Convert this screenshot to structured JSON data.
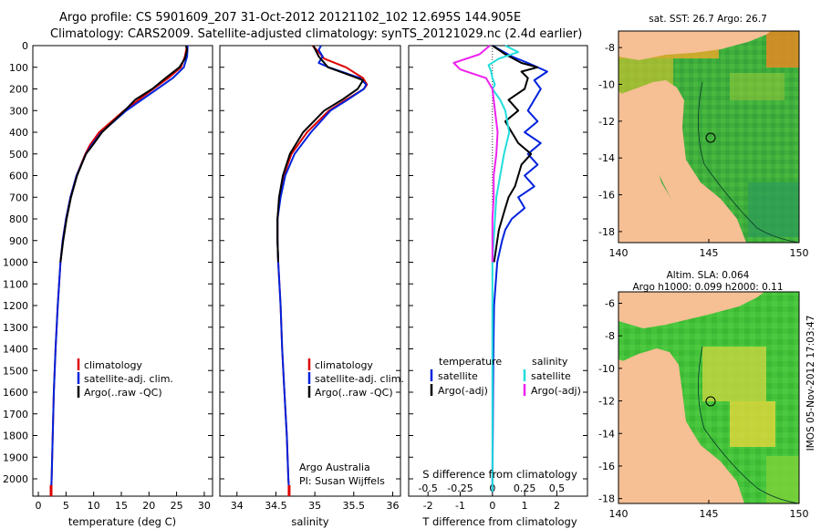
{
  "header": {
    "line1": "Argo profile: CS 5901609_207 31-Oct-2012 20121102_102 12.695S 144.905E",
    "line2": "Climatology: CARS2009. Satellite-adjusted climatology: synTS_20121029.nc (2.4d earlier)"
  },
  "colors": {
    "climatology": "#dd0000",
    "satellite": "#0022dd",
    "argo": "#000000",
    "sal_satellite": "#22dddd",
    "sal_argo": "#ee22ee",
    "land": "#f6bf94"
  },
  "depth_axis": {
    "ticks": [
      "0",
      "100",
      "200",
      "300",
      "400",
      "500",
      "600",
      "700",
      "800",
      "900",
      "1000",
      "1100",
      "1200",
      "1300",
      "1400",
      "1500",
      "1600",
      "1700",
      "1800",
      "1900",
      "2000"
    ]
  },
  "chart_data": [
    {
      "type": "line",
      "panel": "temperature",
      "xlabel": "temperature (deg C)",
      "ylabel": "depth",
      "xlim": [
        -1,
        31.5
      ],
      "ylim": [
        2080,
        0
      ],
      "xticks": [
        "0",
        "5",
        "10",
        "15",
        "20",
        "25",
        "30"
      ],
      "legend": [
        "climatology",
        "satellite-adj. clim.",
        "Argo(..raw -QC)"
      ],
      "series": [
        {
          "name": "climatology",
          "depth": [
            0,
            50,
            100,
            150,
            200,
            300,
            400,
            460,
            500,
            600,
            700,
            800,
            900,
            1000,
            1200,
            1400,
            1600,
            1800,
            2000,
            2060
          ],
          "values": [
            26.9,
            26.5,
            25.8,
            23.5,
            20.8,
            15.5,
            11.0,
            9.3,
            8.5,
            6.9,
            5.8,
            5.0,
            4.4,
            4.0,
            3.5,
            3.1,
            2.8,
            2.6,
            2.4,
            2.3
          ]
        },
        {
          "name": "satellite-adj. clim.",
          "depth": [
            0,
            50,
            100,
            150,
            200,
            300,
            400,
            460,
            500,
            600,
            700,
            800,
            900,
            1000,
            1200,
            1400,
            1600,
            1800,
            2000,
            2060
          ],
          "values": [
            27.0,
            26.9,
            26.3,
            24.3,
            21.5,
            15.9,
            11.4,
            9.6,
            8.6,
            6.9,
            5.8,
            5.0,
            4.4,
            4.0,
            3.5,
            3.1,
            2.8,
            2.6,
            2.4,
            2.3
          ]
        },
        {
          "name": "Argo(..raw -QC)",
          "depth": [
            0,
            20,
            60,
            100,
            150,
            200,
            250,
            300,
            400,
            460,
            500,
            600,
            700,
            800,
            900,
            1000
          ],
          "values": [
            26.7,
            26.9,
            26.5,
            25.5,
            23.0,
            20.6,
            17.5,
            15.6,
            11.5,
            9.8,
            8.6,
            7.0,
            5.9,
            5.1,
            4.5,
            4.0
          ]
        }
      ]
    },
    {
      "type": "line",
      "panel": "salinity",
      "xlabel": "salinity",
      "ylabel": "depth",
      "xlim": [
        33.78,
        36.1
      ],
      "ylim": [
        2080,
        0
      ],
      "xticks": [
        "34",
        "34.5",
        "35",
        "35.5",
        "36"
      ],
      "legend": [
        "climatology",
        "satellite-adj. clim.",
        "Argo(..raw -QC)"
      ],
      "annotation": [
        "Argo Australia",
        "PI: Susan Wijffels"
      ],
      "series": [
        {
          "name": "climatology",
          "depth": [
            0,
            30,
            60,
            100,
            150,
            180,
            200,
            250,
            300,
            400,
            500,
            600,
            700,
            800,
            900,
            1000,
            1200,
            1400,
            1600,
            1800,
            2000,
            2060
          ],
          "values": [
            34.97,
            35.05,
            35.12,
            35.4,
            35.62,
            35.67,
            35.63,
            35.4,
            35.18,
            34.9,
            34.7,
            34.6,
            34.55,
            34.52,
            34.52,
            34.53,
            34.56,
            34.58,
            34.61,
            34.64,
            34.66,
            34.67
          ]
        },
        {
          "name": "satellite-adj. clim.",
          "depth": [
            0,
            20,
            50,
            80,
            100,
            150,
            180,
            200,
            250,
            300,
            400,
            500,
            600,
            700,
            800,
            900,
            1000,
            1200,
            1400,
            1600,
            1800,
            2000,
            2060
          ],
          "values": [
            35.08,
            35.05,
            35.1,
            35.05,
            35.18,
            35.58,
            35.66,
            35.63,
            35.42,
            35.2,
            34.95,
            34.74,
            34.62,
            34.56,
            34.52,
            34.52,
            34.53,
            34.56,
            34.58,
            34.61,
            34.64,
            34.66,
            34.67
          ]
        },
        {
          "name": "Argo(..raw -QC)",
          "depth": [
            0,
            50,
            100,
            130,
            160,
            200,
            250,
            300,
            400,
            500,
            600,
            700,
            800,
            900,
            1000
          ],
          "values": [
            34.98,
            35.05,
            35.17,
            35.4,
            35.62,
            35.55,
            35.35,
            35.12,
            34.85,
            34.68,
            34.59,
            34.54,
            34.52,
            34.52,
            34.53
          ]
        }
      ]
    },
    {
      "type": "line",
      "panel": "difference",
      "xlabel": "T difference from climatology",
      "xlabel_top": "S difference from climatology",
      "ylabel": "depth",
      "xlim": [
        -2.6,
        2.95
      ],
      "ylim": [
        2080,
        0
      ],
      "xticks": [
        "-2",
        "-1",
        "0",
        "1",
        "2"
      ],
      "xticks_top": [
        "-0.5",
        "-0.25",
        "0",
        "0.25",
        "0.5"
      ],
      "legend_temperature_title": "temperature",
      "legend_salinity_title": "salinity",
      "legend_temperature": [
        "satellite",
        "Argo(-adj)"
      ],
      "legend_salinity": [
        "satellite",
        "Argo(-adj)"
      ],
      "series": [
        {
          "name": "temperature satellite",
          "depth": [
            0,
            50,
            80,
            120,
            160,
            200,
            250,
            300,
            350,
            400,
            450,
            500,
            550,
            600,
            650,
            700,
            750,
            800,
            850,
            900,
            1000,
            1200,
            1400,
            1600,
            1800,
            2000,
            2060
          ],
          "values": [
            0.0,
            0.6,
            1.1,
            1.7,
            1.3,
            1.5,
            1.3,
            1.1,
            1.4,
            1.0,
            1.5,
            1.1,
            1.4,
            1.0,
            1.3,
            0.8,
            1.0,
            0.6,
            0.4,
            0.3,
            0.15,
            0.05,
            0.03,
            0.02,
            0.01,
            0.0,
            0.0
          ]
        },
        {
          "name": "temperature Argo(-adj)",
          "depth": [
            0,
            40,
            80,
            100,
            120,
            150,
            200,
            250,
            300,
            350,
            400,
            450,
            500,
            550,
            600,
            650,
            700,
            750,
            800,
            850,
            900,
            950,
            1000
          ],
          "values": [
            0.0,
            0.4,
            0.9,
            1.4,
            0.9,
            1.1,
            1.0,
            0.5,
            0.8,
            0.4,
            0.6,
            0.8,
            1.2,
            0.9,
            0.8,
            0.7,
            0.5,
            0.4,
            0.3,
            0.2,
            0.15,
            0.1,
            0.05
          ]
        },
        {
          "name": "salinity satellite",
          "depth": [
            0,
            30,
            60,
            90,
            120,
            150,
            180,
            200,
            250,
            300,
            400,
            500,
            600,
            700,
            800,
            900,
            1000,
            1200,
            1400,
            1600,
            1800,
            2000,
            2060
          ],
          "values": [
            0.1,
            0.2,
            0.05,
            -0.03,
            -0.01,
            0.0,
            0.02,
            0.0,
            0.06,
            0.1,
            0.13,
            0.09,
            0.06,
            0.03,
            0.02,
            0.01,
            0.0,
            0.0,
            0.0,
            0.0,
            0.0,
            0.0,
            0.0
          ]
        },
        {
          "name": "salinity Argo(-adj)",
          "depth": [
            0,
            40,
            80,
            110,
            150,
            200,
            300,
            400,
            500,
            600,
            700,
            800,
            900,
            1000
          ],
          "values": [
            -0.02,
            -0.1,
            -0.3,
            -0.25,
            -0.05,
            0.0,
            0.02,
            0.04,
            0.03,
            0.01,
            0.01,
            0.0,
            0.0,
            0.0
          ]
        }
      ]
    },
    {
      "type": "heatmap",
      "panel": "map-sst",
      "title": "sat. SST: 26.7 Argo: 26.7",
      "xticks": [
        "140",
        "145",
        "150"
      ],
      "yticks": [
        "-8",
        "-10",
        "-12",
        "-14",
        "-16",
        "-18"
      ],
      "xlim": [
        140,
        150
      ],
      "ylim": [
        -18.6,
        -7.1
      ],
      "float_position": {
        "lon": 144.905,
        "lat": -12.695
      }
    },
    {
      "type": "heatmap",
      "panel": "map-sla",
      "title_line1": "Altim. SLA: 0.064",
      "title_line2": "Argo h1000: 0.099 h2000: 0.11",
      "xticks": [
        "140",
        "145",
        "150"
      ],
      "yticks": [
        "-6",
        "-8",
        "-10",
        "-12",
        "-14",
        "-16",
        "-18"
      ],
      "xlim": [
        140,
        150
      ],
      "ylim": [
        -18.3,
        -5.3
      ],
      "float_position": {
        "lon": 144.905,
        "lat": -12.695
      }
    }
  ],
  "footer": {
    "stamp": "IMOS 05-Nov-2012 17:03:47"
  }
}
